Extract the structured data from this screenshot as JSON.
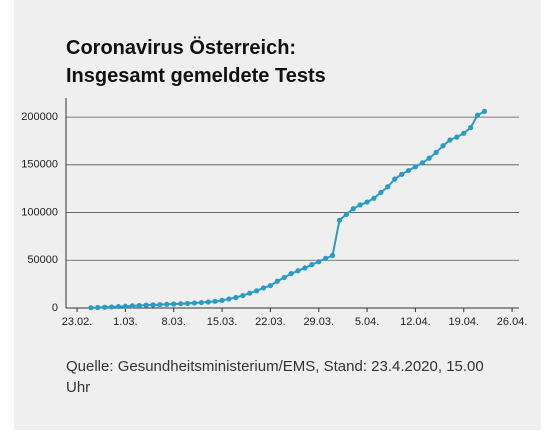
{
  "chart_data": {
    "type": "line",
    "title": "Coronavirus Österreich:",
    "subtitle": "Insgesamt gemeldete Tests",
    "source": "Quelle: Gesundheitsministerium/EMS, Stand: 23.4.2020, 15.00 Uhr",
    "x": [
      2,
      3,
      4,
      5,
      6,
      7,
      8,
      9,
      10,
      11,
      12,
      13,
      14,
      15,
      16,
      17,
      18,
      19,
      20,
      21,
      22,
      23,
      24,
      25,
      26,
      27,
      28,
      29,
      30,
      31,
      32,
      33,
      34,
      35,
      36,
      37,
      38,
      39,
      40,
      41,
      42,
      43,
      44,
      45,
      46,
      47,
      48,
      49,
      50,
      51,
      52,
      53,
      54,
      55,
      56,
      57,
      58,
      59
    ],
    "values": [
      300,
      500,
      800,
      1100,
      1500,
      1800,
      2200,
      2600,
      3000,
      3300,
      3600,
      3900,
      4200,
      4500,
      4800,
      5200,
      5700,
      6300,
      7000,
      8000,
      9500,
      11000,
      13000,
      15500,
      18000,
      21000,
      23500,
      28000,
      32000,
      36000,
      39000,
      42000,
      45500,
      48500,
      52000,
      55000,
      92000,
      98000,
      104000,
      108000,
      111000,
      115000,
      121000,
      127000,
      135000,
      140000,
      144000,
      148000,
      152000,
      157000,
      163000,
      170000,
      176000,
      179000,
      183000,
      189000,
      202000,
      206000
    ],
    "color": "#2a9bc4",
    "xlim": [
      -1.6,
      64
    ],
    "xticks": [
      {
        "value": 0,
        "label": "23.02."
      },
      {
        "value": 7,
        "label": "1.03."
      },
      {
        "value": 14,
        "label": "8.03."
      },
      {
        "value": 21,
        "label": "15.03."
      },
      {
        "value": 28,
        "label": "22.03."
      },
      {
        "value": 35,
        "label": "29.03."
      },
      {
        "value": 42,
        "label": "5.04."
      },
      {
        "value": 49,
        "label": "12.04."
      },
      {
        "value": 56,
        "label": "19.04."
      },
      {
        "value": 63,
        "label": "26.04."
      }
    ],
    "ylim": [
      0,
      220000
    ],
    "yticks": [
      0,
      50000,
      100000,
      150000,
      200000
    ],
    "grid": true
  }
}
